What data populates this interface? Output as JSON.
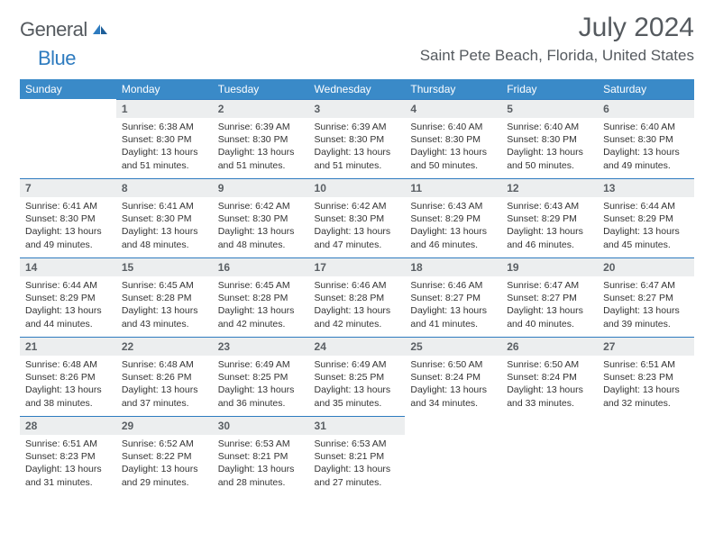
{
  "logo": {
    "word1": "General",
    "word2": "Blue"
  },
  "title": "July 2024",
  "location": "Saint Pete Beach, Florida, United States",
  "colors": {
    "header_bg": "#3a8ac8",
    "header_text": "#ffffff",
    "daynum_bg": "#eceeef",
    "daynum_text": "#5a5f64",
    "rule": "#2e7bbf",
    "body_text": "#333333",
    "page_bg": "#ffffff",
    "logo_gray": "#555a5f",
    "logo_blue": "#2e7bbf"
  },
  "fonts": {
    "title_pt": 30,
    "location_pt": 17,
    "header_pt": 12,
    "daynum_pt": 12,
    "detail_pt": 10.5
  },
  "weekdays": [
    "Sunday",
    "Monday",
    "Tuesday",
    "Wednesday",
    "Thursday",
    "Friday",
    "Saturday"
  ],
  "first_weekday_index": 1,
  "days": [
    {
      "n": 1,
      "sunrise": "6:38 AM",
      "sunset": "8:30 PM",
      "daylight": "13 hours and 51 minutes."
    },
    {
      "n": 2,
      "sunrise": "6:39 AM",
      "sunset": "8:30 PM",
      "daylight": "13 hours and 51 minutes."
    },
    {
      "n": 3,
      "sunrise": "6:39 AM",
      "sunset": "8:30 PM",
      "daylight": "13 hours and 51 minutes."
    },
    {
      "n": 4,
      "sunrise": "6:40 AM",
      "sunset": "8:30 PM",
      "daylight": "13 hours and 50 minutes."
    },
    {
      "n": 5,
      "sunrise": "6:40 AM",
      "sunset": "8:30 PM",
      "daylight": "13 hours and 50 minutes."
    },
    {
      "n": 6,
      "sunrise": "6:40 AM",
      "sunset": "8:30 PM",
      "daylight": "13 hours and 49 minutes."
    },
    {
      "n": 7,
      "sunrise": "6:41 AM",
      "sunset": "8:30 PM",
      "daylight": "13 hours and 49 minutes."
    },
    {
      "n": 8,
      "sunrise": "6:41 AM",
      "sunset": "8:30 PM",
      "daylight": "13 hours and 48 minutes."
    },
    {
      "n": 9,
      "sunrise": "6:42 AM",
      "sunset": "8:30 PM",
      "daylight": "13 hours and 48 minutes."
    },
    {
      "n": 10,
      "sunrise": "6:42 AM",
      "sunset": "8:30 PM",
      "daylight": "13 hours and 47 minutes."
    },
    {
      "n": 11,
      "sunrise": "6:43 AM",
      "sunset": "8:29 PM",
      "daylight": "13 hours and 46 minutes."
    },
    {
      "n": 12,
      "sunrise": "6:43 AM",
      "sunset": "8:29 PM",
      "daylight": "13 hours and 46 minutes."
    },
    {
      "n": 13,
      "sunrise": "6:44 AM",
      "sunset": "8:29 PM",
      "daylight": "13 hours and 45 minutes."
    },
    {
      "n": 14,
      "sunrise": "6:44 AM",
      "sunset": "8:29 PM",
      "daylight": "13 hours and 44 minutes."
    },
    {
      "n": 15,
      "sunrise": "6:45 AM",
      "sunset": "8:28 PM",
      "daylight": "13 hours and 43 minutes."
    },
    {
      "n": 16,
      "sunrise": "6:45 AM",
      "sunset": "8:28 PM",
      "daylight": "13 hours and 42 minutes."
    },
    {
      "n": 17,
      "sunrise": "6:46 AM",
      "sunset": "8:28 PM",
      "daylight": "13 hours and 42 minutes."
    },
    {
      "n": 18,
      "sunrise": "6:46 AM",
      "sunset": "8:27 PM",
      "daylight": "13 hours and 41 minutes."
    },
    {
      "n": 19,
      "sunrise": "6:47 AM",
      "sunset": "8:27 PM",
      "daylight": "13 hours and 40 minutes."
    },
    {
      "n": 20,
      "sunrise": "6:47 AM",
      "sunset": "8:27 PM",
      "daylight": "13 hours and 39 minutes."
    },
    {
      "n": 21,
      "sunrise": "6:48 AM",
      "sunset": "8:26 PM",
      "daylight": "13 hours and 38 minutes."
    },
    {
      "n": 22,
      "sunrise": "6:48 AM",
      "sunset": "8:26 PM",
      "daylight": "13 hours and 37 minutes."
    },
    {
      "n": 23,
      "sunrise": "6:49 AM",
      "sunset": "8:25 PM",
      "daylight": "13 hours and 36 minutes."
    },
    {
      "n": 24,
      "sunrise": "6:49 AM",
      "sunset": "8:25 PM",
      "daylight": "13 hours and 35 minutes."
    },
    {
      "n": 25,
      "sunrise": "6:50 AM",
      "sunset": "8:24 PM",
      "daylight": "13 hours and 34 minutes."
    },
    {
      "n": 26,
      "sunrise": "6:50 AM",
      "sunset": "8:24 PM",
      "daylight": "13 hours and 33 minutes."
    },
    {
      "n": 27,
      "sunrise": "6:51 AM",
      "sunset": "8:23 PM",
      "daylight": "13 hours and 32 minutes."
    },
    {
      "n": 28,
      "sunrise": "6:51 AM",
      "sunset": "8:23 PM",
      "daylight": "13 hours and 31 minutes."
    },
    {
      "n": 29,
      "sunrise": "6:52 AM",
      "sunset": "8:22 PM",
      "daylight": "13 hours and 29 minutes."
    },
    {
      "n": 30,
      "sunrise": "6:53 AM",
      "sunset": "8:21 PM",
      "daylight": "13 hours and 28 minutes."
    },
    {
      "n": 31,
      "sunrise": "6:53 AM",
      "sunset": "8:21 PM",
      "daylight": "13 hours and 27 minutes."
    }
  ],
  "labels": {
    "sunrise": "Sunrise:",
    "sunset": "Sunset:",
    "daylight": "Daylight:"
  }
}
